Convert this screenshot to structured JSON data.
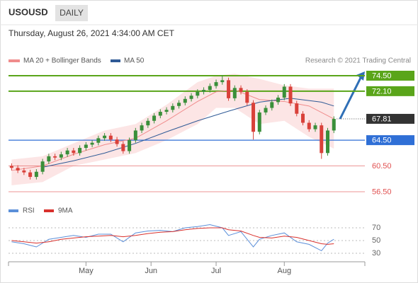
{
  "chart_data": [
    {
      "type": "candlestick",
      "symbol": "USOUSD",
      "timeframe": "DAILY",
      "subtitle": "Thursday, August 26, 2021 4:34:00 AM CET",
      "copyright": "Research © 2021 Trading Central",
      "xlim": [
        -1,
        114
      ],
      "ylim": [
        55,
        76
      ],
      "up_color": "#3a8f3a",
      "down_color": "#d9413a",
      "candles": {
        "x": [
          0,
          2,
          4,
          6,
          8,
          10,
          12,
          14,
          16,
          18,
          20,
          22,
          24,
          26,
          28,
          30,
          32,
          34,
          36,
          38,
          40,
          42,
          44,
          46,
          48,
          50,
          52,
          54,
          56,
          58,
          60,
          62,
          64,
          66,
          68,
          70,
          72,
          74,
          76,
          78,
          80,
          82,
          84,
          86,
          88,
          90,
          92,
          94,
          96,
          98,
          100,
          102,
          104
        ],
        "open": [
          60.5,
          60.2,
          59.8,
          59.5,
          58.8,
          59.6,
          61.2,
          62.0,
          61.8,
          62.3,
          62.9,
          62.5,
          63.3,
          63.8,
          64.1,
          64.8,
          65.2,
          64.6,
          63.9,
          62.8,
          64.5,
          66.0,
          66.8,
          67.5,
          68.3,
          68.9,
          69.2,
          69.8,
          70.3,
          70.9,
          71.4,
          72.0,
          72.3,
          72.9,
          73.5,
          73.8,
          71.0,
          72.6,
          72.0,
          70.3,
          65.8,
          68.8,
          69.5,
          70.4,
          71.1,
          72.8,
          70.2,
          68.6,
          67.2,
          66.2,
          66.8,
          62.5,
          66.0
        ],
        "high": [
          60.9,
          60.6,
          60.2,
          59.9,
          60.0,
          61.6,
          62.4,
          62.4,
          62.7,
          63.3,
          63.3,
          63.7,
          64.2,
          64.5,
          65.2,
          65.6,
          65.6,
          65.0,
          64.3,
          64.9,
          66.4,
          67.2,
          67.9,
          68.7,
          69.3,
          69.6,
          70.2,
          70.7,
          71.3,
          71.8,
          72.4,
          72.7,
          73.3,
          73.9,
          74.6,
          74.2,
          73.0,
          73.0,
          72.4,
          70.7,
          69.2,
          69.9,
          70.8,
          71.5,
          73.2,
          73.2,
          70.6,
          69.0,
          67.6,
          67.2,
          67.2,
          66.4,
          68.2
        ],
        "low": [
          59.8,
          59.4,
          59.1,
          58.4,
          58.4,
          59.2,
          60.8,
          61.4,
          61.4,
          61.9,
          62.1,
          62.1,
          62.9,
          63.4,
          63.7,
          64.4,
          64.2,
          63.5,
          62.4,
          62.4,
          64.1,
          65.6,
          66.4,
          67.1,
          67.9,
          68.5,
          68.8,
          69.4,
          69.9,
          70.5,
          71.0,
          71.6,
          71.9,
          72.5,
          73.1,
          70.6,
          70.6,
          71.6,
          69.9,
          64.6,
          65.4,
          68.4,
          69.1,
          70.0,
          70.7,
          69.8,
          68.2,
          66.8,
          65.8,
          65.8,
          61.6,
          62.1,
          65.6
        ],
        "close": [
          60.2,
          59.8,
          59.5,
          58.8,
          59.6,
          61.2,
          62.0,
          61.8,
          62.3,
          62.9,
          62.5,
          63.3,
          63.8,
          64.1,
          64.8,
          65.2,
          64.6,
          63.9,
          62.8,
          64.5,
          66.0,
          66.8,
          67.5,
          68.3,
          68.9,
          69.2,
          69.8,
          70.3,
          70.9,
          71.4,
          72.0,
          72.3,
          72.9,
          73.5,
          73.8,
          71.0,
          72.6,
          72.0,
          70.3,
          65.8,
          68.8,
          69.5,
          70.4,
          71.1,
          72.8,
          70.2,
          68.6,
          67.2,
          66.2,
          66.8,
          62.5,
          66.0,
          67.8
        ]
      },
      "series": [
        {
          "name": "MA 20 + Bollinger Bands",
          "color": "#f08c8c",
          "band_color": "#fbdcdc",
          "x": [
            0,
            10,
            20,
            30,
            40,
            50,
            60,
            66,
            72,
            80,
            88,
            96,
            104
          ],
          "values": [
            59.8,
            60.5,
            62.3,
            63.8,
            64.8,
            67.5,
            70.5,
            72.0,
            72.3,
            70.8,
            70.5,
            69.8,
            67.8
          ],
          "upper": [
            61.5,
            62.0,
            64.0,
            66.0,
            67.0,
            70.0,
            73.5,
            74.5,
            74.8,
            74.0,
            73.0,
            72.5,
            72.5
          ],
          "lower": [
            57.5,
            58.0,
            60.5,
            61.5,
            62.5,
            64.5,
            67.0,
            69.5,
            69.5,
            67.0,
            67.5,
            65.0,
            63.2
          ]
        },
        {
          "name": "MA 50",
          "color": "#2f5a96",
          "x": [
            10,
            20,
            30,
            40,
            50,
            60,
            70,
            80,
            90,
            100,
            104
          ],
          "values": [
            60.3,
            61.3,
            62.5,
            64.0,
            65.8,
            67.5,
            69.0,
            70.4,
            71.0,
            70.4,
            69.8
          ]
        }
      ],
      "levels": [
        {
          "value": 74.5,
          "label": "74.50",
          "color": "#5aa51a",
          "style": "box"
        },
        {
          "value": 72.1,
          "label": "72.10",
          "color": "#5aa51a",
          "style": "box"
        },
        {
          "value": 67.81,
          "label": "67.81",
          "color": "#333333",
          "style": "current"
        },
        {
          "value": 64.5,
          "label": "64.50",
          "color": "#2f6fd6",
          "style": "box"
        },
        {
          "value": 60.5,
          "label": "60.50",
          "color": "#e05050",
          "style": "text"
        },
        {
          "value": 56.5,
          "label": "56.50",
          "color": "#e05050",
          "style": "text"
        }
      ]
    },
    {
      "type": "line",
      "xlim": [
        -1,
        114
      ],
      "ylim": [
        15,
        95
      ],
      "yticks": [
        70,
        50,
        30
      ],
      "xticks": [
        {
          "value": 24,
          "label": "May"
        },
        {
          "value": 45,
          "label": "Jun"
        },
        {
          "value": 66,
          "label": "Jul"
        },
        {
          "value": 88,
          "label": "Aug"
        }
      ],
      "series": [
        {
          "name": "RSI",
          "color": "#5b8fd9",
          "x": [
            0,
            4,
            8,
            12,
            16,
            20,
            24,
            28,
            32,
            36,
            40,
            44,
            48,
            52,
            56,
            60,
            64,
            68,
            70,
            74,
            78,
            80,
            84,
            88,
            92,
            96,
            100,
            102,
            104
          ],
          "values": [
            48,
            45,
            40,
            52,
            55,
            58,
            55,
            60,
            60,
            48,
            62,
            65,
            66,
            64,
            70,
            72,
            75,
            70,
            58,
            64,
            40,
            52,
            58,
            62,
            48,
            44,
            34,
            46,
            52
          ]
        },
        {
          "name": "9MA",
          "color": "#d9302c",
          "x": [
            0,
            4,
            8,
            12,
            16,
            20,
            24,
            28,
            32,
            36,
            40,
            44,
            48,
            52,
            56,
            60,
            64,
            68,
            70,
            74,
            78,
            80,
            84,
            88,
            92,
            96,
            100,
            102,
            104
          ],
          "values": [
            50,
            48,
            46,
            48,
            52,
            54,
            56,
            57,
            58,
            56,
            58,
            61,
            63,
            64,
            67,
            69,
            70,
            70,
            67,
            65,
            58,
            55,
            54,
            57,
            55,
            50,
            45,
            44,
            45
          ]
        }
      ]
    }
  ]
}
